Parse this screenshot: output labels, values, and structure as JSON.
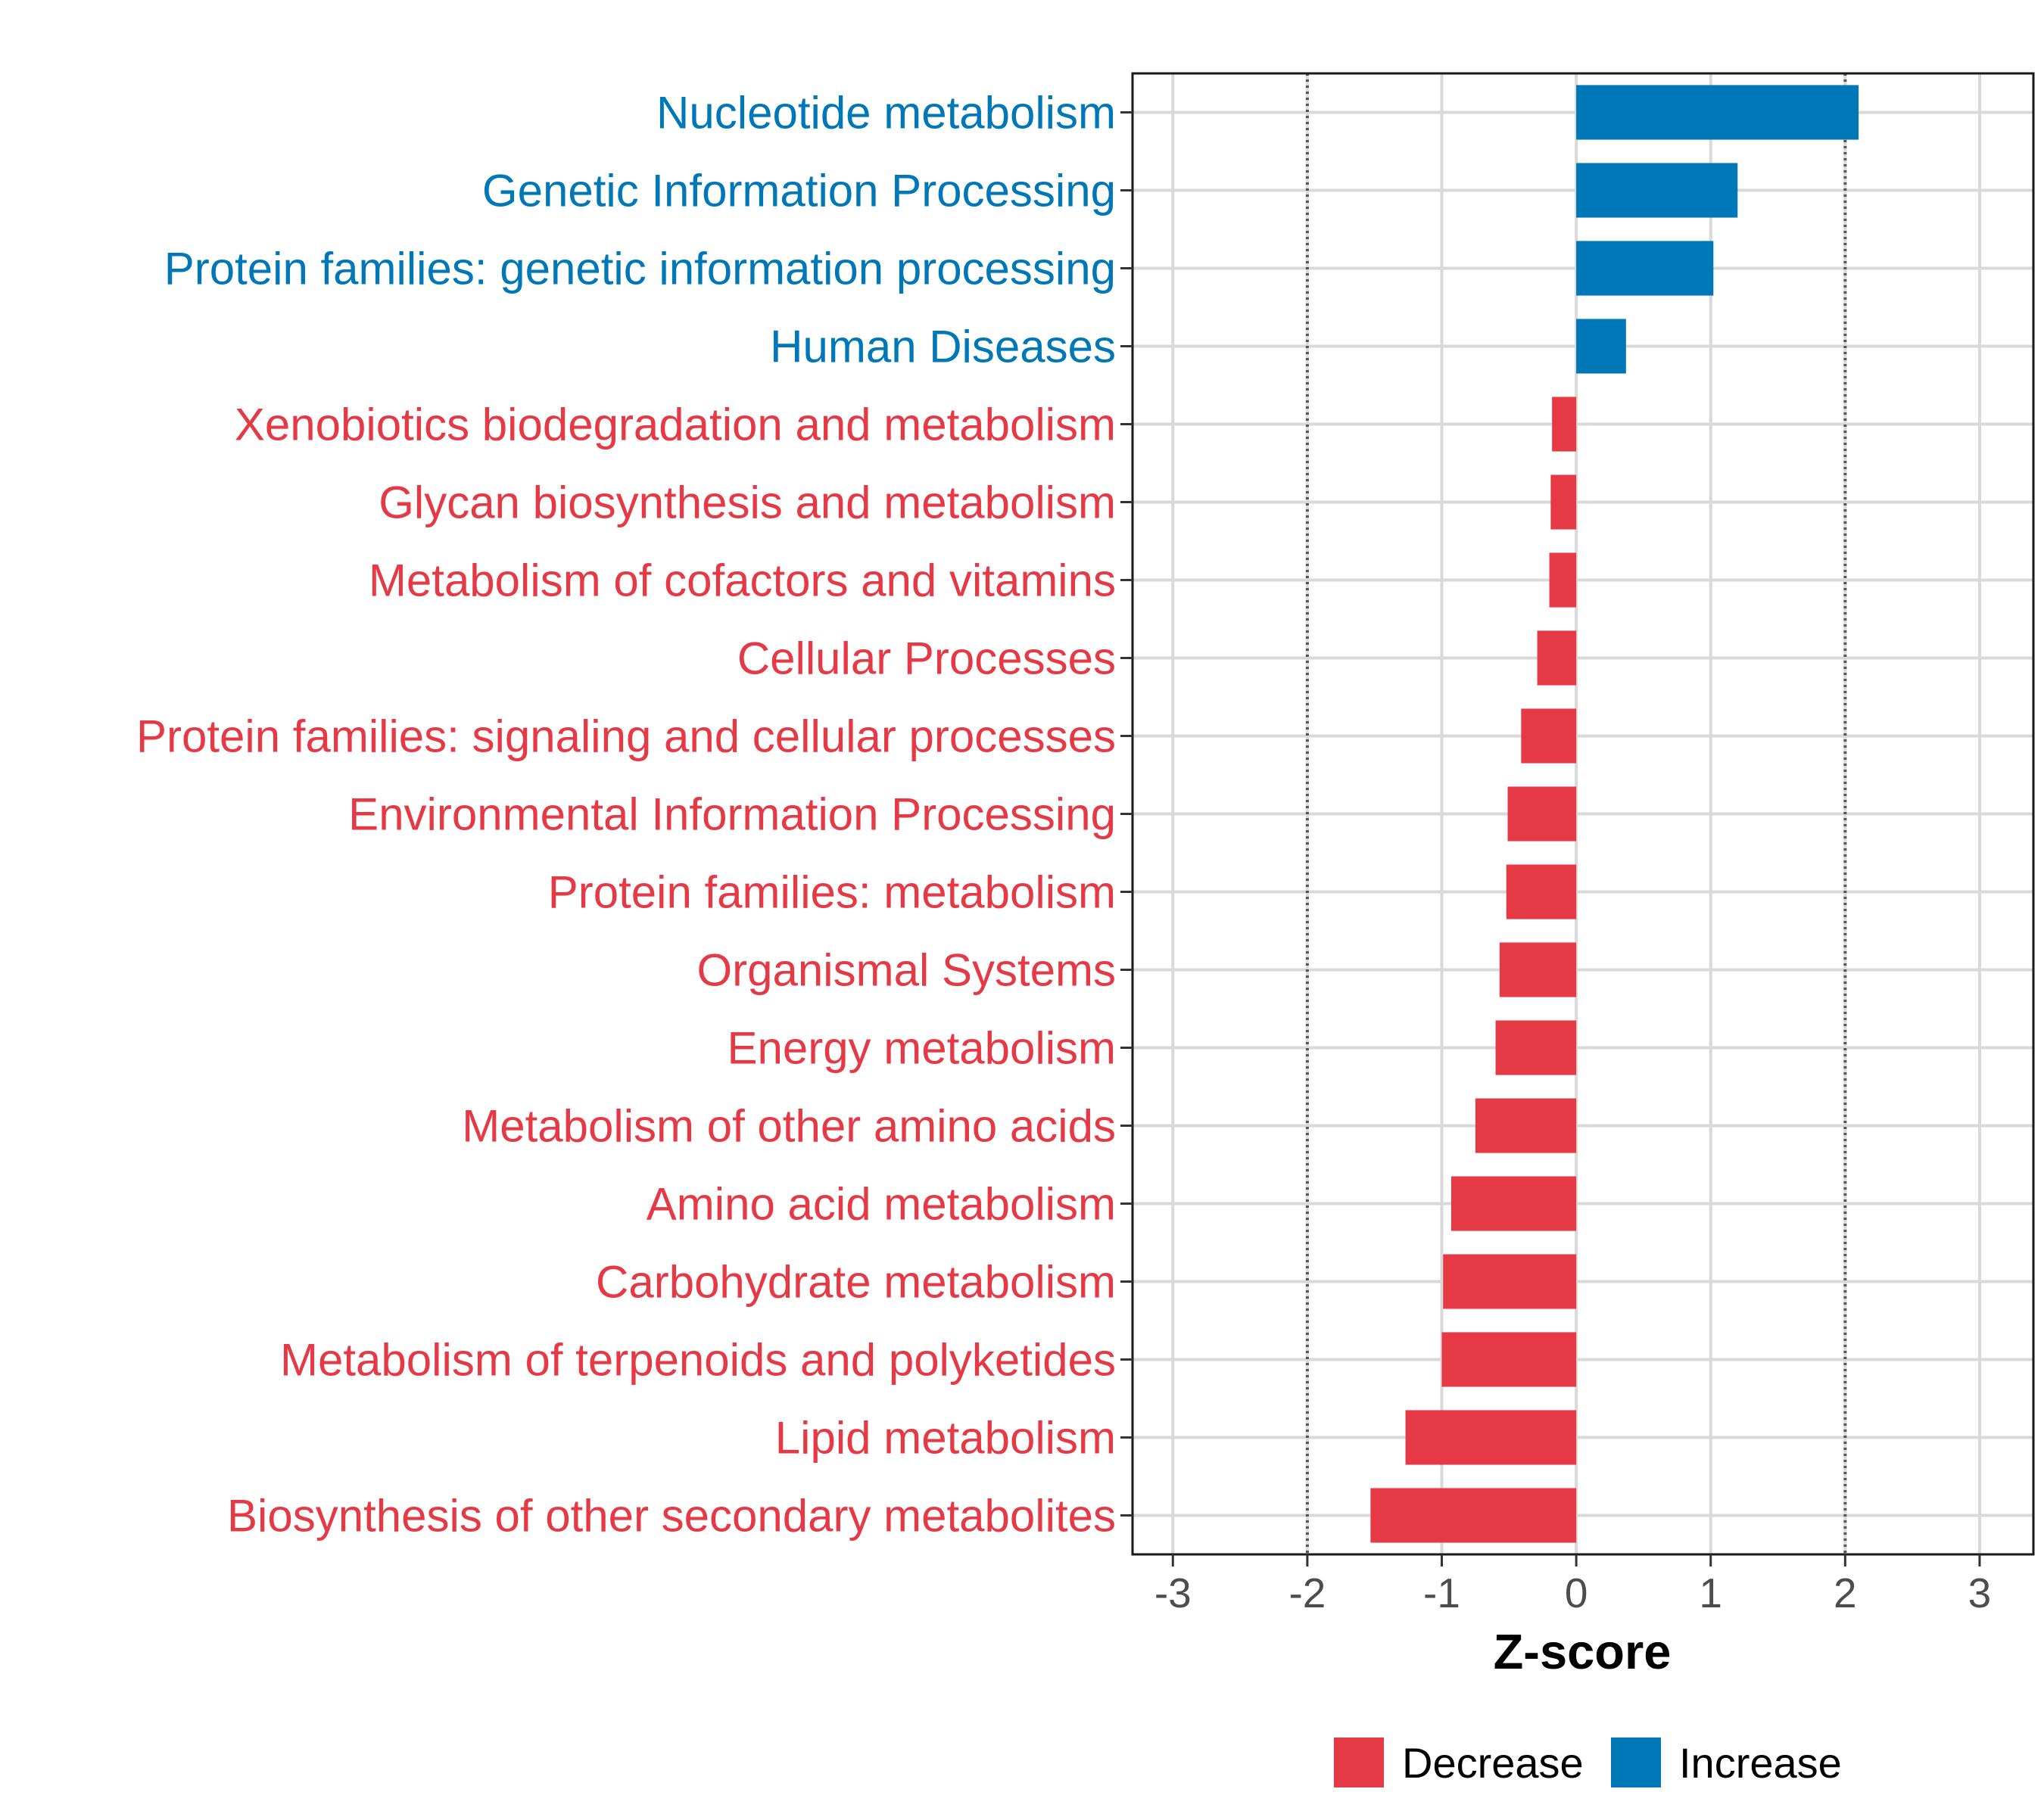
{
  "chart_data": {
    "type": "bar",
    "orientation": "horizontal",
    "title": "",
    "xlabel": "Z-score",
    "ylabel": "",
    "xlim": [
      -3.3,
      3.4
    ],
    "xticks": [
      -3,
      -2,
      -1,
      0,
      1,
      2,
      3
    ],
    "xtick_labels": [
      "-3",
      "-2",
      "-1",
      "0",
      "1",
      "2",
      "3"
    ],
    "reference_lines": [
      -2,
      2
    ],
    "grid": true,
    "legend_position": "bottom",
    "categories": [
      "Nucleotide metabolism",
      "Genetic Information Processing",
      "Protein families: genetic information processing",
      "Human Diseases",
      "Xenobiotics biodegradation and metabolism",
      "Glycan biosynthesis and metabolism",
      "Metabolism of cofactors and vitamins",
      "Cellular Processes",
      "Protein families: signaling and cellular processes",
      "Environmental Information Processing",
      "Protein families: metabolism",
      "Organismal Systems",
      "Energy metabolism",
      "Metabolism of other amino acids",
      "Amino acid metabolism",
      "Carbohydrate metabolism",
      "Metabolism of terpenoids and polyketides",
      "Lipid metabolism",
      "Biosynthesis of other secondary metabolites"
    ],
    "values": [
      2.1,
      1.2,
      1.02,
      0.37,
      -0.18,
      -0.19,
      -0.2,
      -0.29,
      -0.41,
      -0.51,
      -0.52,
      -0.57,
      -0.6,
      -0.75,
      -0.93,
      -0.99,
      -1.0,
      -1.27,
      -1.53
    ],
    "groups": [
      "Increase",
      "Increase",
      "Increase",
      "Increase",
      "Decrease",
      "Decrease",
      "Decrease",
      "Decrease",
      "Decrease",
      "Decrease",
      "Decrease",
      "Decrease",
      "Decrease",
      "Decrease",
      "Decrease",
      "Decrease",
      "Decrease",
      "Decrease",
      "Decrease"
    ],
    "legend": [
      {
        "name": "Decrease",
        "color": "#E63946"
      },
      {
        "name": "Increase",
        "color": "#0077B6"
      }
    ]
  }
}
